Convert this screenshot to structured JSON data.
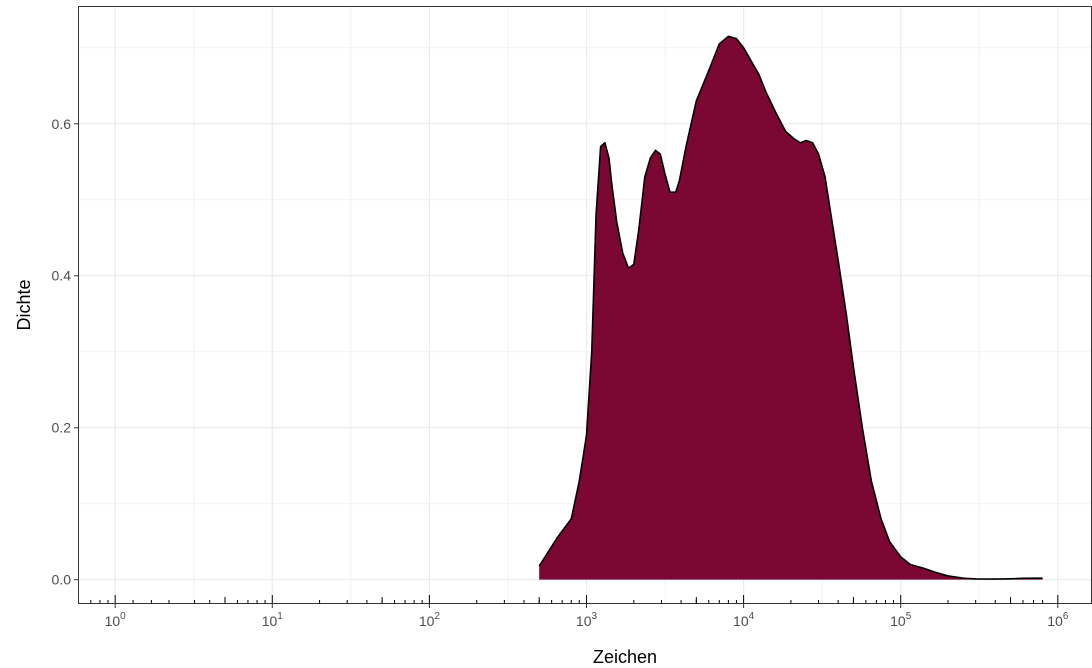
{
  "chart_data": {
    "type": "area",
    "xlabel": "Zeichen",
    "ylabel": "Dichte",
    "x_scale": "log10",
    "xlim": [
      0.58,
      1650000
    ],
    "ylim": [
      -0.032,
      0.755
    ],
    "x_ticks": [
      {
        "value": 1,
        "base": "10",
        "exp": "0"
      },
      {
        "value": 10,
        "base": "10",
        "exp": "1"
      },
      {
        "value": 100,
        "base": "10",
        "exp": "2"
      },
      {
        "value": 1000,
        "base": "10",
        "exp": "3"
      },
      {
        "value": 10000,
        "base": "10",
        "exp": "4"
      },
      {
        "value": 100000,
        "base": "10",
        "exp": "5"
      },
      {
        "value": 1000000,
        "base": "10",
        "exp": "6"
      }
    ],
    "y_ticks": [
      {
        "value": 0.0,
        "label": "0.0"
      },
      {
        "value": 0.2,
        "label": "0.2"
      },
      {
        "value": 0.4,
        "label": "0.4"
      },
      {
        "value": 0.6,
        "label": "0.6"
      }
    ],
    "y_minor_ticks": [
      0.1,
      0.3,
      0.5,
      0.7
    ],
    "grid": true,
    "rug_ticks": true,
    "fill_color": "#7b0832",
    "line_color": "#000000",
    "series": [
      {
        "x": [
          500,
          650,
          800,
          900,
          1000,
          1080,
          1150,
          1230,
          1310,
          1390,
          1450,
          1560,
          1700,
          1850,
          2000,
          2150,
          2350,
          2550,
          2750,
          2950,
          3150,
          3400,
          3700,
          3900,
          4300,
          5000,
          6000,
          7000,
          8000,
          9000,
          10000,
          11000,
          12500,
          14000,
          16000,
          18500,
          21000,
          23000,
          25000,
          27500,
          30000,
          33000,
          36000,
          40000,
          45000,
          50000,
          57000,
          65000,
          75000,
          85000,
          100000,
          115000,
          140000,
          165000,
          200000,
          250000,
          300000,
          400000,
          500000,
          600000,
          700000,
          800000
        ],
        "y": [
          0.018,
          0.055,
          0.08,
          0.13,
          0.19,
          0.3,
          0.48,
          0.57,
          0.575,
          0.555,
          0.52,
          0.47,
          0.43,
          0.41,
          0.415,
          0.46,
          0.53,
          0.555,
          0.565,
          0.56,
          0.535,
          0.51,
          0.51,
          0.525,
          0.57,
          0.63,
          0.67,
          0.705,
          0.715,
          0.712,
          0.7,
          0.685,
          0.665,
          0.64,
          0.615,
          0.59,
          0.58,
          0.575,
          0.578,
          0.575,
          0.56,
          0.53,
          0.48,
          0.42,
          0.35,
          0.28,
          0.2,
          0.13,
          0.08,
          0.05,
          0.03,
          0.02,
          0.015,
          0.01,
          0.005,
          0.002,
          0.001,
          0.0008,
          0.0012,
          0.0018,
          0.002,
          0.002
        ]
      }
    ],
    "rug_x": [
      0.7,
      0.8,
      0.9,
      1.3,
      1.7,
      2.2,
      3.2,
      4.0,
      5.0,
      6.0,
      7.0,
      8.0,
      9.0,
      20,
      30,
      40,
      50,
      60,
      70,
      80,
      90,
      200,
      300,
      400,
      500,
      600,
      700,
      800,
      900,
      2000,
      3000,
      4000,
      5000,
      6000,
      7000,
      8000,
      9000,
      20000,
      30000,
      40000,
      50000,
      60000,
      70000,
      80000,
      90000,
      200000,
      300000,
      400000,
      500000,
      600000,
      700000,
      800000
    ]
  }
}
